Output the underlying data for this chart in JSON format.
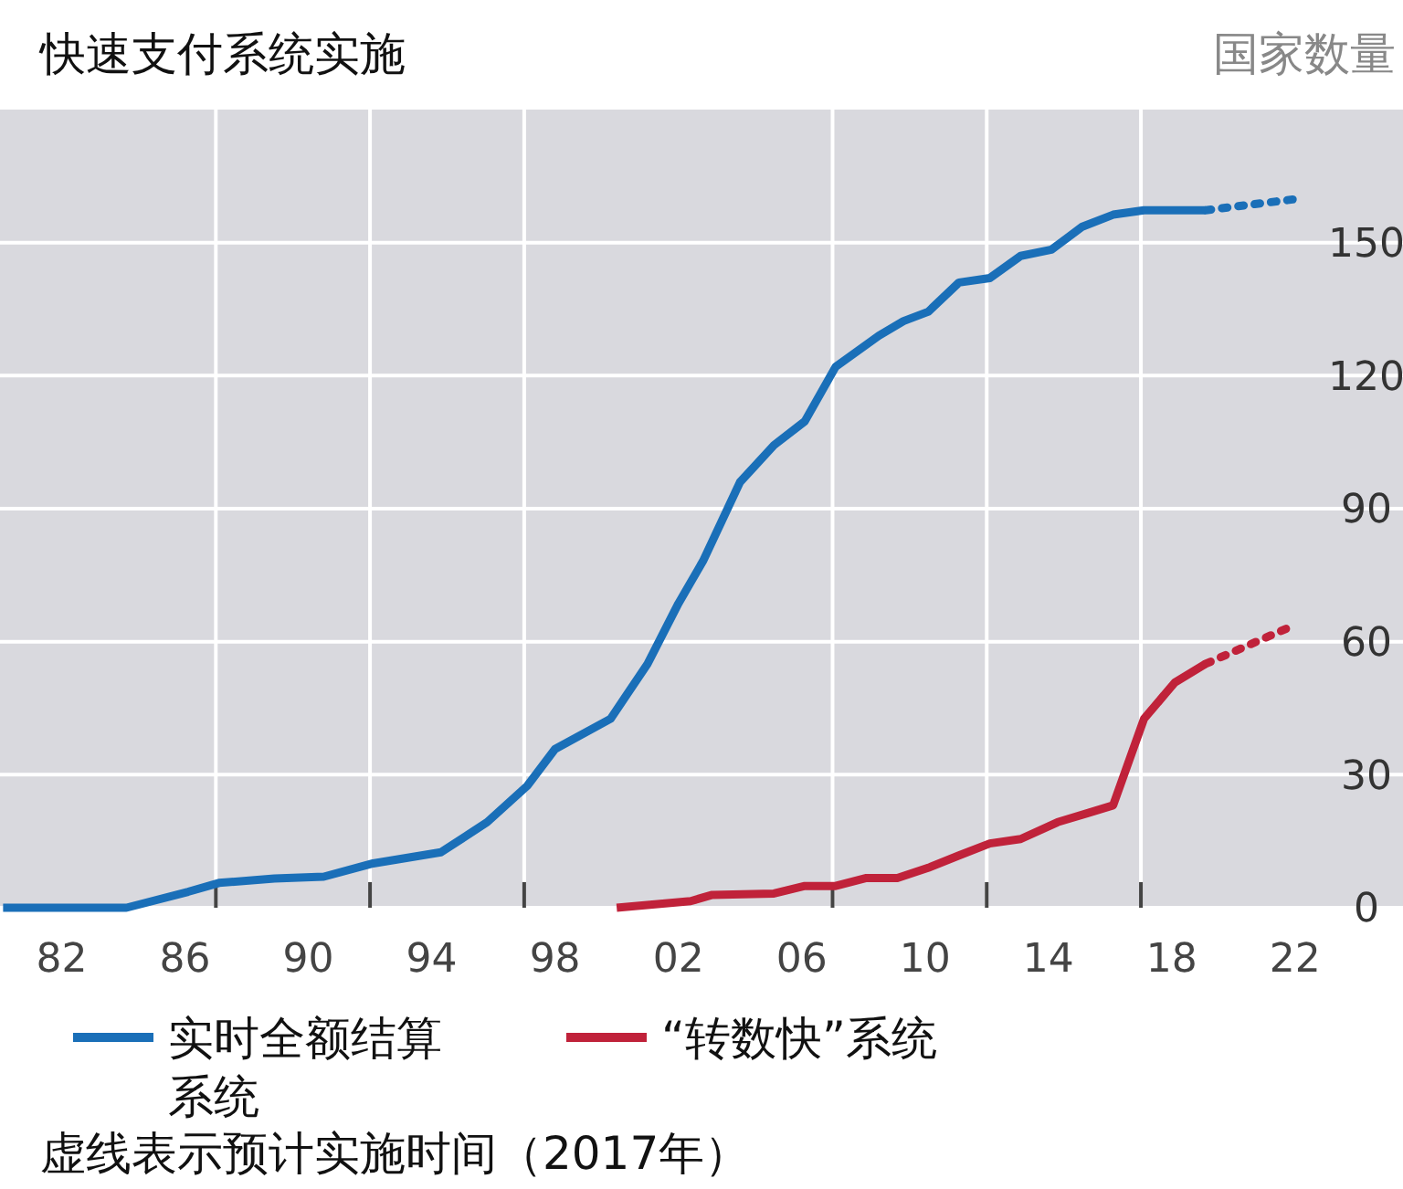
{
  "chart_data": {
    "type": "line",
    "title": "快速支付系统实施",
    "ylabel": "国家数量",
    "annotations": [
      "虚线表示预计实施时间（2017年）"
    ],
    "xlim": [
      1980,
      2025.5
    ],
    "ylim": [
      0,
      180
    ],
    "xticks": [
      {
        "value": 1982,
        "label": "82"
      },
      {
        "value": 1986,
        "label": "86"
      },
      {
        "value": 1990,
        "label": "90"
      },
      {
        "value": 1994,
        "label": "94"
      },
      {
        "value": 1998,
        "label": "98"
      },
      {
        "value": 2002,
        "label": "02"
      },
      {
        "value": 2006,
        "label": "06"
      },
      {
        "value": 2010,
        "label": "10"
      },
      {
        "value": 2014,
        "label": "14"
      },
      {
        "value": 2018,
        "label": "18"
      },
      {
        "value": 2022,
        "label": "22"
      },
      {
        "value": 1987,
        "label": null
      },
      {
        "value": 1992,
        "label": null
      },
      {
        "value": 1997,
        "label": null
      },
      {
        "value": 2007,
        "label": null
      },
      {
        "value": 2012,
        "label": null
      },
      {
        "value": 2017,
        "label": null
      }
    ],
    "yticks": [
      0,
      30,
      60,
      90,
      120,
      150
    ],
    "grid": true,
    "legend": "bottom",
    "line_style": "solid",
    "series": [
      {
        "name": "实时全额结算系统",
        "color": "#1a6fb8",
        "x": [
          1980.1,
          1984.1,
          1986.1,
          1987.1,
          1988.9,
          1990.5,
          1992.1,
          1994.3,
          1995.8,
          1997.1,
          1998,
          1999.8,
          2001,
          2002,
          2002.8,
          2004,
          2005.1,
          2006.1,
          2007.1,
          2008.5,
          2009.3,
          2010.1,
          2011.1,
          2012.1,
          2013.1,
          2014.1,
          2015.1,
          2016.1,
          2017.1,
          2019.1
        ],
        "values": [
          0,
          0,
          3.6,
          5.6,
          6.6,
          7,
          10,
          12.5,
          19.3,
          27.5,
          35.8,
          42.6,
          55,
          68.6,
          78.2,
          96,
          104.3,
          109.7,
          122,
          129,
          132.3,
          134.4,
          141,
          142,
          147,
          148.4,
          153.6,
          156.3,
          157.3,
          157.3
        ]
      },
      {
        "color": "#1a6fb8",
        "line_style": "dotted",
        "x": [
          2019.1,
          2022
        ],
        "values": [
          157.3,
          159.8
        ]
      },
      {
        "name": "“转数快”系统",
        "color": "#c0223a",
        "x": [
          2000,
          2002.4,
          2003.1,
          2005.1,
          2006.1,
          2007.1,
          2008.1,
          2009.1,
          2010.1,
          2011.1,
          2012.1,
          2013.1,
          2014.3,
          2015.3,
          2016.1,
          2017.1,
          2018.1,
          2019.1
        ],
        "values": [
          0,
          1.5,
          2.9,
          3.2,
          4.9,
          4.9,
          6.7,
          6.7,
          9,
          11.8,
          14.5,
          15.5,
          19.3,
          21.4,
          23.1,
          42.6,
          50.8,
          55
        ]
      },
      {
        "color": "#c0223a",
        "line_style": "dotted",
        "x": [
          2019.1,
          2022
        ],
        "values": [
          55,
          63.8
        ]
      }
    ]
  }
}
